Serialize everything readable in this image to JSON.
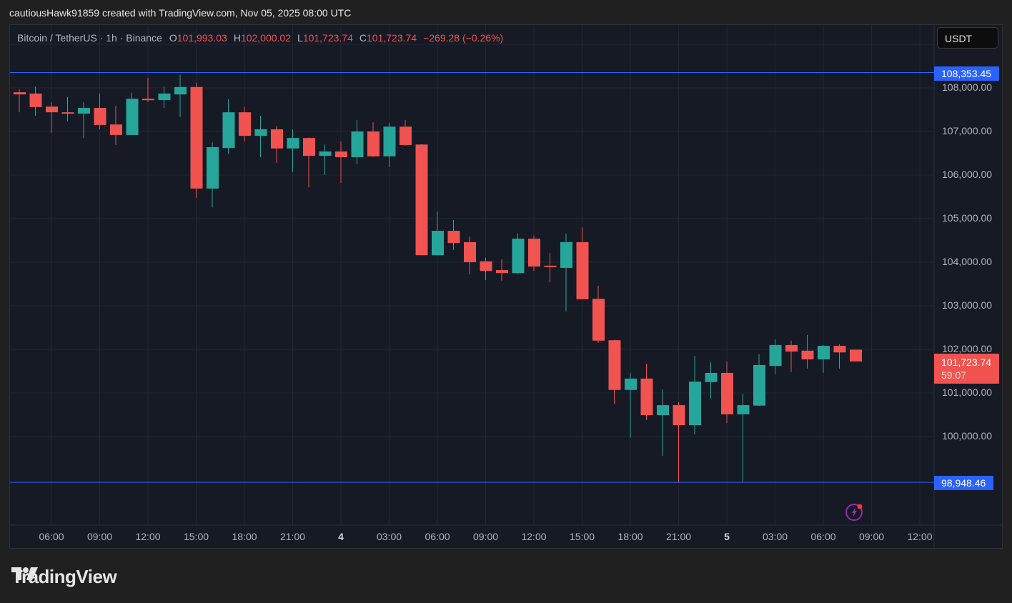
{
  "caption": "cautiousHawk91859 created with TradingView.com, Nov 05, 2025 08:00 UTC",
  "legend": {
    "symbol": "Bitcoin / TetherUS · 1h · Binance",
    "open_label": "O",
    "open": "101,993.03",
    "high_label": "H",
    "high": "102,000.02",
    "low_label": "L",
    "low": "101,723.74",
    "close_label": "C",
    "close": "101,723.74",
    "change": "−269.28 (−0.26%)"
  },
  "currency_button": "USDT",
  "price_labels": {
    "high_line": "108,353.45",
    "low_line": "98,948.46",
    "last_price": "101,723.74",
    "countdown": "59:07"
  },
  "logo_text": "TradingView",
  "colors": {
    "up": "#26a69a",
    "down": "#f05350",
    "line": "#2962ff",
    "grid": "#232632",
    "bg": "#161a25"
  },
  "chart_data": {
    "type": "candlestick",
    "title": "Bitcoin / TetherUS · 1h · Binance",
    "timeframe": "1h",
    "first_bar": "Nov 3 04:00",
    "yaxis_ticks": [
      100000,
      101000,
      102000,
      103000,
      104000,
      105000,
      106000,
      107000,
      108000
    ],
    "yaxis_tick_labels": [
      "100,000.00",
      "101,000.00",
      "102,000.00",
      "103,000.00",
      "104,000.00",
      "105,000.00",
      "106,000.00",
      "107,000.00",
      "108,000.00"
    ],
    "xaxis_ticks": [
      {
        "label": "06:00",
        "i": 2
      },
      {
        "label": "09:00",
        "i": 5
      },
      {
        "label": "12:00",
        "i": 8
      },
      {
        "label": "15:00",
        "i": 11
      },
      {
        "label": "18:00",
        "i": 14
      },
      {
        "label": "21:00",
        "i": 17
      },
      {
        "label": "4",
        "i": 20,
        "bold": true
      },
      {
        "label": "03:00",
        "i": 23
      },
      {
        "label": "06:00",
        "i": 26
      },
      {
        "label": "09:00",
        "i": 29
      },
      {
        "label": "12:00",
        "i": 32
      },
      {
        "label": "15:00",
        "i": 35
      },
      {
        "label": "18:00",
        "i": 38
      },
      {
        "label": "21:00",
        "i": 41
      },
      {
        "label": "5",
        "i": 44,
        "bold": true
      },
      {
        "label": "03:00",
        "i": 47
      },
      {
        "label": "06:00",
        "i": 50
      },
      {
        "label": "09:00",
        "i": 53
      },
      {
        "label": "12:00",
        "i": 56
      }
    ],
    "horizontal_lines": [
      108353.45,
      98948.46
    ],
    "last_price": 101723.74,
    "ohlc": [
      [
        107900,
        107970,
        107440,
        107850
      ],
      [
        107870,
        108030,
        107360,
        107560
      ],
      [
        107570,
        107670,
        106970,
        107440
      ],
      [
        107440,
        107790,
        107230,
        107410
      ],
      [
        107410,
        107670,
        106850,
        107540
      ],
      [
        107540,
        107870,
        107050,
        107150
      ],
      [
        107160,
        107590,
        106690,
        106920
      ],
      [
        106920,
        107890,
        106920,
        107750
      ],
      [
        107750,
        108230,
        107670,
        107720
      ],
      [
        107720,
        108030,
        107540,
        107870
      ],
      [
        107850,
        108300,
        107330,
        108020
      ],
      [
        108020,
        108120,
        105480,
        105690
      ],
      [
        105690,
        106750,
        105260,
        106640
      ],
      [
        106620,
        107740,
        106490,
        107440
      ],
      [
        107440,
        107560,
        106770,
        106900
      ],
      [
        106900,
        107360,
        106410,
        107050
      ],
      [
        107050,
        107130,
        106280,
        106610
      ],
      [
        106610,
        107050,
        106070,
        106850
      ],
      [
        106850,
        106860,
        105720,
        106440
      ],
      [
        106440,
        106700,
        106000,
        106540
      ],
      [
        106540,
        106770,
        105820,
        106410
      ],
      [
        106410,
        107260,
        106250,
        107000
      ],
      [
        107000,
        107210,
        106420,
        106430
      ],
      [
        106430,
        107200,
        106180,
        107110
      ],
      [
        107110,
        107260,
        106670,
        106690
      ],
      [
        106700,
        106710,
        104160,
        104160
      ],
      [
        104160,
        105160,
        104160,
        104720
      ],
      [
        104720,
        104970,
        104280,
        104440
      ],
      [
        104460,
        104590,
        103720,
        104000
      ],
      [
        104020,
        104100,
        103590,
        103800
      ],
      [
        103820,
        104070,
        103570,
        103750
      ],
      [
        103750,
        104660,
        103740,
        104540
      ],
      [
        104540,
        104610,
        103800,
        103900
      ],
      [
        103920,
        104210,
        103540,
        103890
      ],
      [
        103870,
        104660,
        102870,
        104460
      ],
      [
        104460,
        104800,
        103150,
        103150
      ],
      [
        103160,
        103460,
        102150,
        102200
      ],
      [
        102210,
        102220,
        100750,
        101070
      ],
      [
        101070,
        101460,
        99970,
        101330
      ],
      [
        101330,
        101670,
        100380,
        100490
      ],
      [
        100490,
        101080,
        99560,
        100720
      ],
      [
        100720,
        100790,
        98948.46,
        100260
      ],
      [
        100260,
        101850,
        100050,
        101260
      ],
      [
        101250,
        101710,
        100870,
        101460
      ],
      [
        101460,
        101720,
        100310,
        100510
      ],
      [
        100510,
        100980,
        98960,
        100720
      ],
      [
        100710,
        101890,
        100700,
        101640
      ],
      [
        101620,
        102230,
        101430,
        102100
      ],
      [
        102100,
        102200,
        101480,
        101950
      ],
      [
        101970,
        102330,
        101560,
        101770
      ],
      [
        101770,
        102100,
        101460,
        102080
      ],
      [
        102080,
        102120,
        101560,
        101930
      ],
      [
        101993.03,
        102000.02,
        101723.74,
        101723.74
      ]
    ]
  }
}
